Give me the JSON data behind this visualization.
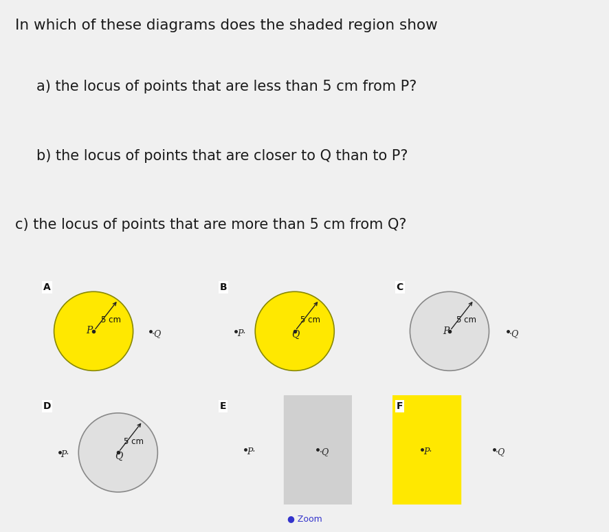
{
  "bg_color": "#e8e8e8",
  "yellow": "#FFE800",
  "grey_panel": "#d0d0d0",
  "white_circle": "#e0e0e0",
  "title_line0": "In which of these diagrams does the shaded region show",
  "title_line1": "a) the locus of points that are less than 5 cm from P?",
  "title_line2": "b) the locus of points that are closer to Q than to P?",
  "title_line3": "c) the locus of points that are more than 5 cm from Q?",
  "zoom_text": "Zoom"
}
